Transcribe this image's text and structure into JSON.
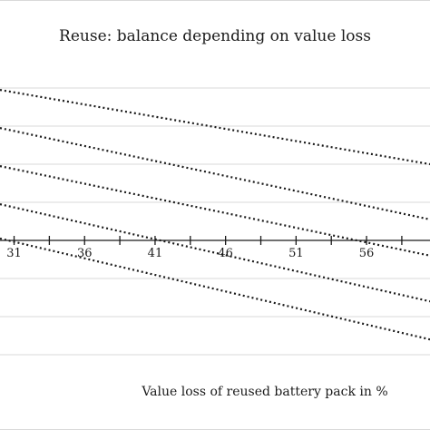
{
  "chart_data": {
    "type": "line",
    "title": "Reuse: balance depending on value loss",
    "xlabel": "Value loss of reused battery pack in %",
    "ylabel": "",
    "xlim": [
      30,
      60.5
    ],
    "ylim": [
      -3,
      4
    ],
    "x_ticks": [
      31,
      36,
      41,
      46,
      51,
      56
    ],
    "x_tick_labels": [
      "31",
      "36",
      "41",
      "46",
      "51",
      "56"
    ],
    "y_gridlines": [
      -3,
      -2,
      -1,
      0,
      1,
      2,
      3,
      4
    ],
    "grid": true,
    "line_style": "dotted",
    "line_color": "#1a1a1a",
    "series": [
      {
        "x": [
          30,
          60.5
        ],
        "values": [
          3.95,
          2.0
        ]
      },
      {
        "x": [
          30,
          60.5
        ],
        "values": [
          2.95,
          0.55
        ]
      },
      {
        "x": [
          30,
          60.5
        ],
        "values": [
          1.95,
          -0.4
        ]
      },
      {
        "x": [
          30,
          60.5
        ],
        "values": [
          0.95,
          -1.6
        ]
      },
      {
        "x": [
          30,
          60.5
        ],
        "values": [
          0.05,
          -2.6
        ]
      }
    ]
  }
}
